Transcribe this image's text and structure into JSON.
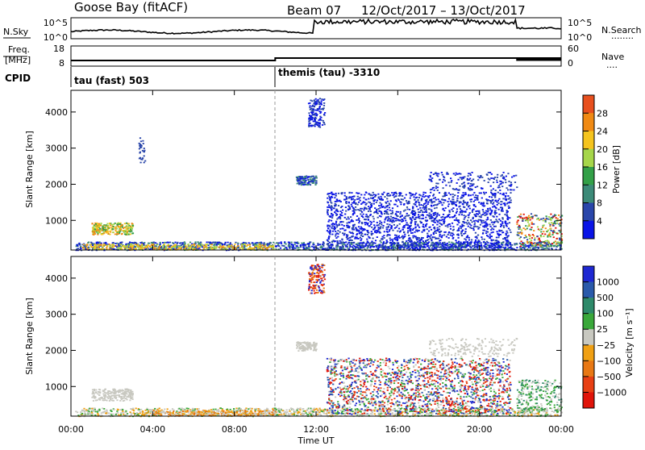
{
  "header": {
    "station": "Goose Bay (fitACF)",
    "beam": "Beam 07",
    "dates": "12/Oct/2017 – 13/Oct/2017"
  },
  "noise_panel": {
    "left_label": "N.Sky",
    "right_label": "N.Search",
    "left_ticks": [
      "10^5",
      "10^0"
    ],
    "right_ticks": [
      "10^5",
      "10^0"
    ],
    "right_dots": "........"
  },
  "freq_panel": {
    "left_label_1": "Freq.",
    "left_label_2": "[MHz]",
    "right_label": "Nave",
    "left_ticks": [
      "18",
      "8"
    ],
    "right_ticks": [
      "60",
      "0"
    ],
    "right_dots": "...."
  },
  "cpid_panel": {
    "label": "CPID",
    "mode_1": "tau (fast) 503",
    "mode_2": "themis (tau) -3310"
  },
  "colors": {
    "power": [
      "#0a14e6",
      "#2a46aa",
      "#3c8a78",
      "#33a048",
      "#a6d64a",
      "#f5c41e",
      "#f08a14",
      "#e8501e",
      "#e0140a"
    ],
    "velocity": [
      "#1e28d2",
      "#2a5aaa",
      "#2e8a6a",
      "#3aa83a",
      "#c8c8c0",
      "#f0a014",
      "#e87814",
      "#e84014",
      "#e0140a"
    ]
  },
  "chart_data": [
    {
      "type": "heatmap",
      "name": "power",
      "ylabel": "Slant Range [km]",
      "xlim": [
        "00:00",
        "00:00"
      ],
      "ylim": [
        180,
        4600
      ],
      "yticks": [
        1000,
        2000,
        3000,
        4000
      ],
      "colorbar_label": "Power [dB]",
      "colorbar_ticks": [
        "4",
        "8",
        "12",
        "16",
        "20",
        "24",
        "28"
      ],
      "colorbar_range": [
        0,
        32
      ],
      "note_regions": [
        {
          "t0": 0.4,
          "t1": 10,
          "r0": 180,
          "r1": 380,
          "level": 8
        },
        {
          "t0": 1,
          "t1": 3,
          "r0": 600,
          "r1": 950,
          "level": 20
        },
        {
          "t0": 11.6,
          "t1": 12.4,
          "r0": 3600,
          "r1": 4400,
          "level": 6
        },
        {
          "t0": 11,
          "t1": 12,
          "r0": 2000,
          "r1": 2250,
          "level": 8
        },
        {
          "t0": 12.5,
          "t1": 21.5,
          "r0": 200,
          "r1": 1800,
          "level": 4
        },
        {
          "t0": 17.5,
          "t1": 21.8,
          "r0": 1800,
          "r1": 2400,
          "level": 6
        },
        {
          "t0": 21.8,
          "t1": 24,
          "r0": 300,
          "r1": 1200,
          "level": 22
        }
      ]
    },
    {
      "type": "heatmap",
      "name": "velocity",
      "ylabel": "Slant Range [km]",
      "xlabel": "Time UT",
      "xticks": [
        "00:00",
        "04:00",
        "08:00",
        "12:00",
        "16:00",
        "20:00",
        "00:00"
      ],
      "ylim": [
        180,
        4600
      ],
      "yticks": [
        1000,
        2000,
        3000,
        4000
      ],
      "colorbar_label": "Velocity [m s⁻¹]",
      "colorbar_ticks": [
        "1000",
        "500",
        "100",
        "25",
        "−25",
        "−100",
        "−500",
        "−1000"
      ]
    }
  ],
  "cpid_change_time": 10.0
}
